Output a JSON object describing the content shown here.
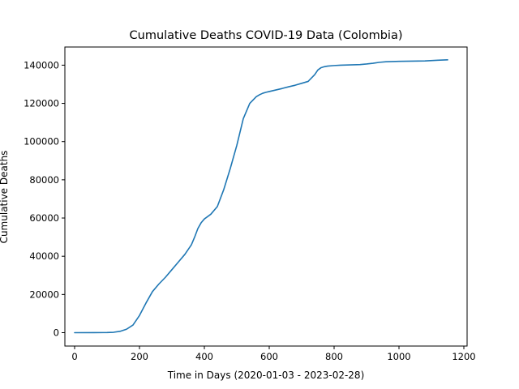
{
  "chart_data": {
    "type": "line",
    "title": "Cumulative Deaths COVID-19 Data (Colombia)",
    "xlabel": "Time in Days (2020-01-03 - 2023-02-28)",
    "ylabel": "Cumulative Deaths",
    "xlim": [
      -30,
      1210
    ],
    "ylim": [
      -7000,
      149500
    ],
    "xticks": [
      0,
      200,
      400,
      600,
      800,
      1000,
      1200
    ],
    "yticks": [
      0,
      20000,
      40000,
      60000,
      80000,
      100000,
      120000,
      140000
    ],
    "grid": false,
    "series": [
      {
        "color": "#1f77b4",
        "x": [
          0,
          60,
          100,
          120,
          140,
          160,
          180,
          200,
          220,
          240,
          260,
          280,
          300,
          320,
          340,
          360,
          370,
          380,
          390,
          400,
          420,
          440,
          460,
          480,
          500,
          520,
          540,
          560,
          570,
          580,
          590,
          600,
          620,
          640,
          660,
          680,
          700,
          720,
          740,
          750,
          760,
          770,
          780,
          800,
          820,
          840,
          860,
          880,
          900,
          920,
          940,
          960,
          980,
          1000,
          1040,
          1080,
          1120,
          1150
        ],
        "y": [
          0,
          20,
          60,
          200,
          700,
          1800,
          4000,
          9000,
          15500,
          21500,
          25500,
          29000,
          33000,
          37000,
          41000,
          46000,
          50000,
          54500,
          57500,
          59500,
          62000,
          66000,
          75000,
          86000,
          98000,
          112000,
          120000,
          123500,
          124500,
          125300,
          125800,
          126200,
          127000,
          127800,
          128700,
          129500,
          130500,
          131500,
          135000,
          137500,
          138700,
          139200,
          139500,
          139800,
          140000,
          140100,
          140200,
          140300,
          140600,
          141000,
          141500,
          141800,
          141900,
          142000,
          142100,
          142200,
          142600,
          142800
        ]
      }
    ]
  }
}
